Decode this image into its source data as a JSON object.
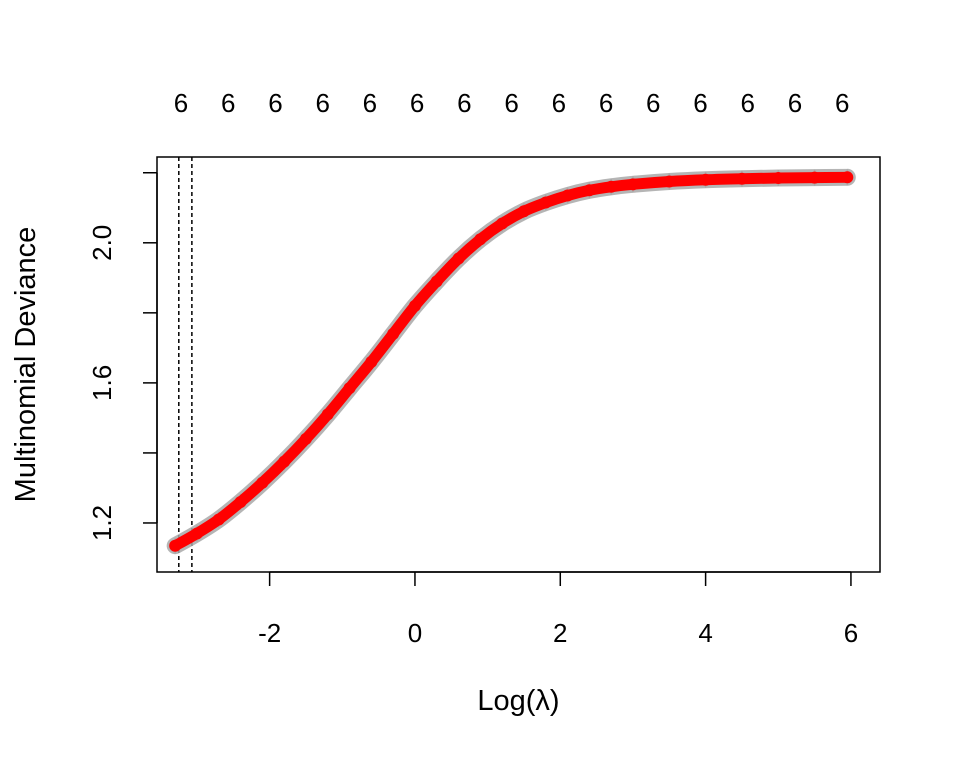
{
  "chart_data": {
    "type": "line",
    "title": "",
    "xlabel": "Log(λ)",
    "ylabel": "Multinomial Deviance",
    "xlim": [
      -3.55,
      6.4
    ],
    "ylim": [
      1.06,
      2.245
    ],
    "x_ticks": [
      -2,
      0,
      2,
      4,
      6
    ],
    "y_ticks": [
      1.2,
      1.4,
      1.6,
      1.8,
      2.0,
      2.2
    ],
    "y_tick_labels": [
      "1.2",
      "",
      "1.6",
      "",
      "2.0",
      ""
    ],
    "top_axis": {
      "x": [
        -3.22,
        -2.57,
        -1.92,
        -1.27,
        -0.62,
        0.03,
        0.68,
        1.33,
        1.98,
        2.63,
        3.28,
        3.93,
        4.58,
        5.23,
        5.88
      ],
      "labels": [
        "6",
        "6",
        "6",
        "6",
        "6",
        "6",
        "6",
        "6",
        "6",
        "6",
        "6",
        "6",
        "6",
        "6",
        "6"
      ]
    },
    "vlines": [
      -3.25,
      -3.07
    ],
    "vline_style": "dotted",
    "series": [
      {
        "color": "#ff0000",
        "marker": "filled-circle",
        "error_bar_color": "#a8a8a8",
        "x": [
          -3.3,
          -3.0,
          -2.7,
          -2.4,
          -2.1,
          -1.8,
          -1.5,
          -1.2,
          -0.9,
          -0.6,
          -0.3,
          0.0,
          0.3,
          0.6,
          0.9,
          1.2,
          1.5,
          1.8,
          2.1,
          2.4,
          2.7,
          3.0,
          3.5,
          4.0,
          4.5,
          5.0,
          5.5,
          5.95
        ],
        "y": [
          1.135,
          1.17,
          1.21,
          1.26,
          1.315,
          1.375,
          1.44,
          1.51,
          1.585,
          1.66,
          1.74,
          1.82,
          1.89,
          1.955,
          2.01,
          2.055,
          2.09,
          2.115,
          2.135,
          2.15,
          2.16,
          2.167,
          2.175,
          2.18,
          2.183,
          2.185,
          2.186,
          2.187
        ]
      }
    ],
    "grid": false,
    "legend": "none"
  }
}
